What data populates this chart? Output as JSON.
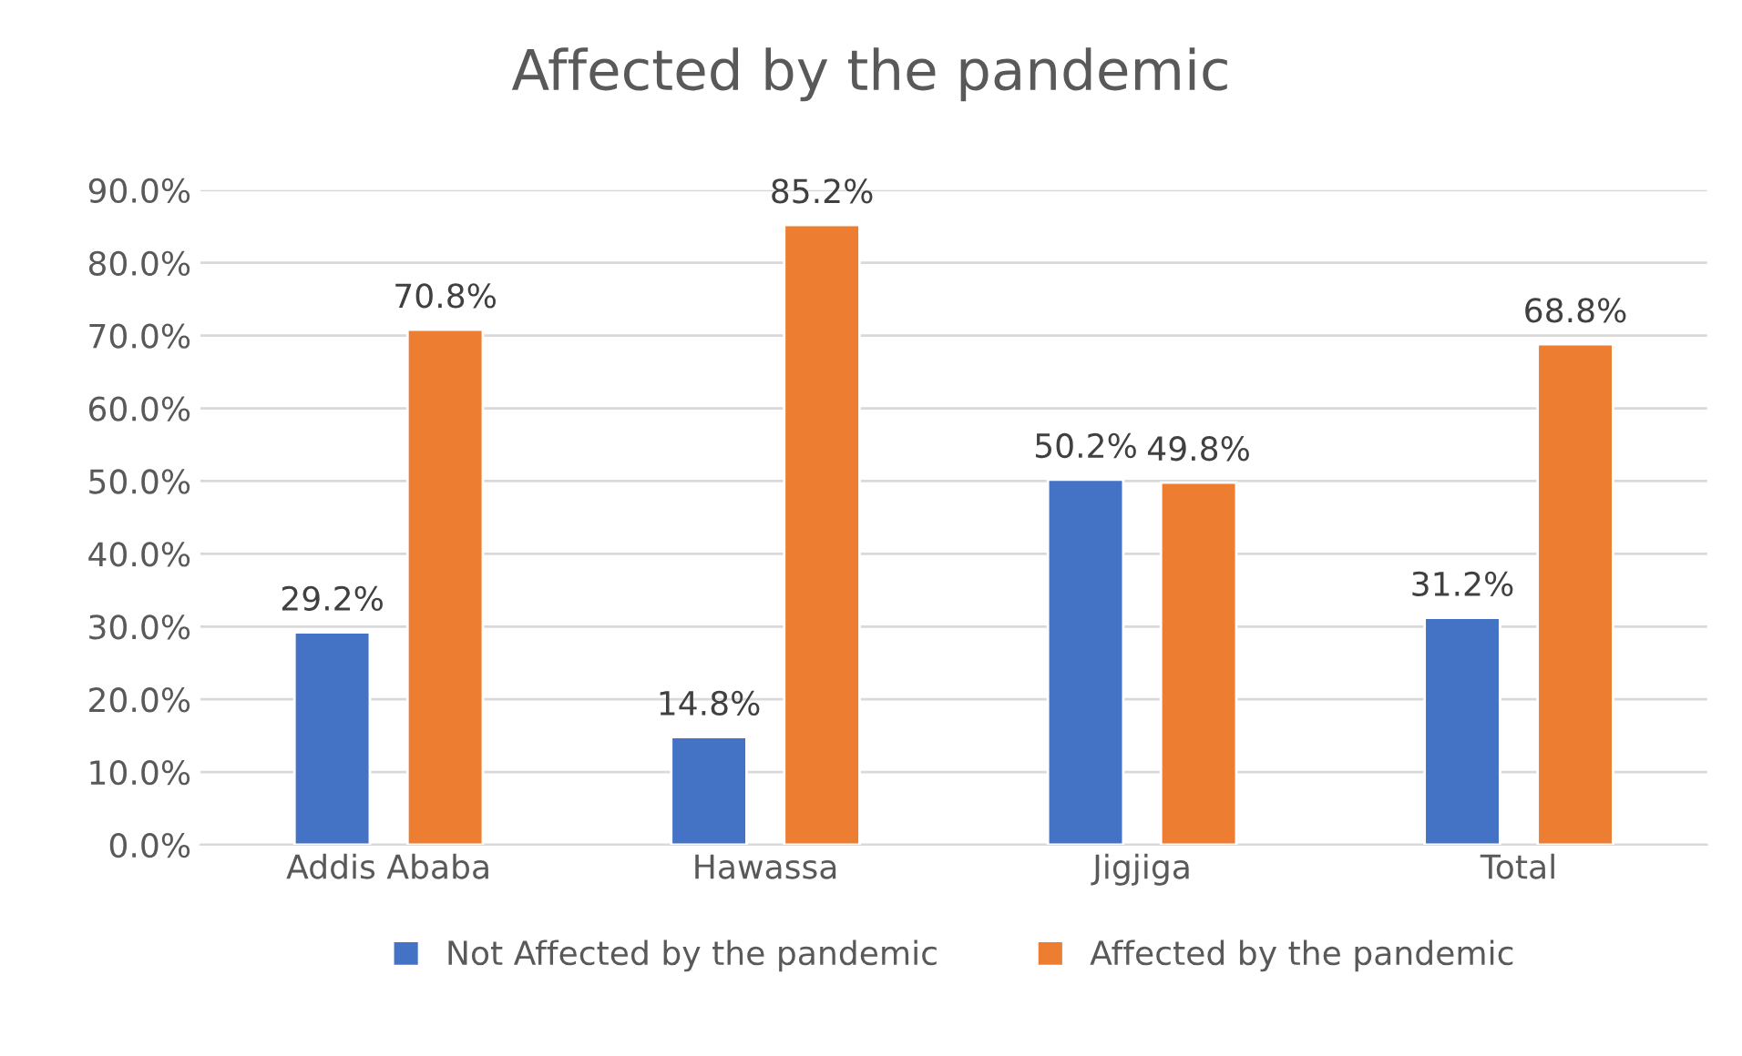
{
  "chart_data": {
    "type": "bar",
    "title": "Affected by the pandemic",
    "categories": [
      "Addis Ababa",
      "Hawassa",
      "Jigjiga",
      "Total"
    ],
    "series": [
      {
        "name": "Not Affected by the pandemic",
        "color": "#4472c4",
        "values": [
          29.2,
          14.8,
          50.2,
          31.2
        ],
        "value_labels": [
          "29.2%",
          "14.8%",
          "50.2%",
          "31.2%"
        ]
      },
      {
        "name": "Affected by the pandemic",
        "color": "#ed7d31",
        "values": [
          70.8,
          85.2,
          49.8,
          68.8
        ],
        "value_labels": [
          "70.8%",
          "85.2%",
          "49.8%",
          "68.8%"
        ]
      }
    ],
    "ylim": [
      0,
      90
    ],
    "yticks": [
      {
        "value": 0,
        "label": "0.0%"
      },
      {
        "value": 10,
        "label": "10.0%"
      },
      {
        "value": 20,
        "label": "20.0%"
      },
      {
        "value": 30,
        "label": "30.0%"
      },
      {
        "value": 40,
        "label": "40.0%"
      },
      {
        "value": 50,
        "label": "50.0%"
      },
      {
        "value": 60,
        "label": "60.0%"
      },
      {
        "value": 70,
        "label": "70.0%"
      },
      {
        "value": 80,
        "label": "80.0%"
      },
      {
        "value": 90,
        "label": "90.0%"
      }
    ],
    "grid": "y",
    "legend": "bottom"
  }
}
